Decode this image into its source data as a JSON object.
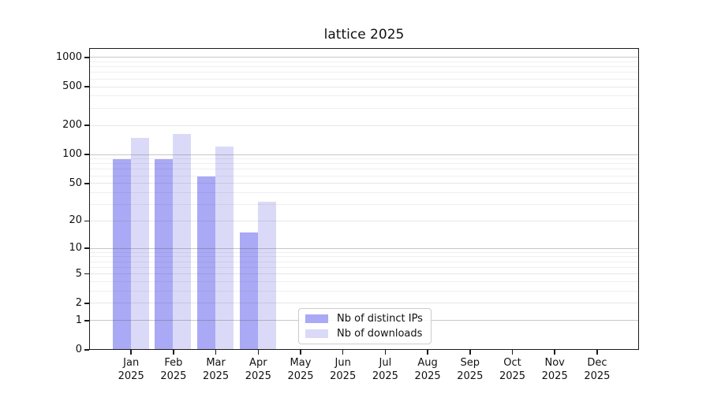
{
  "chart_data": {
    "type": "bar",
    "title": "lattice 2025",
    "months": [
      "Jan",
      "Feb",
      "Mar",
      "Apr",
      "May",
      "Jun",
      "Jul",
      "Aug",
      "Sep",
      "Oct",
      "Nov",
      "Dec"
    ],
    "year_label": "2025",
    "y_axis": {
      "scale": "log1p",
      "ticks": [
        0,
        1,
        2,
        5,
        10,
        20,
        50,
        100,
        200,
        500,
        1000
      ],
      "range_top": 1250,
      "grid": "on"
    },
    "series": [
      {
        "name": "Nb of distinct IPs",
        "color": "#a9a9f5",
        "values": [
          89,
          88,
          59,
          15,
          null,
          null,
          null,
          null,
          null,
          null,
          null,
          null
        ]
      },
      {
        "name": "Nb of downloads",
        "color": "#dadaf8",
        "values": [
          147,
          163,
          119,
          32,
          null,
          null,
          null,
          null,
          null,
          null,
          null,
          null
        ]
      }
    ],
    "legend_position": "bottom-center"
  },
  "colors": {
    "grid_major": "rgba(80,80,80,0.32)",
    "grid_mid": "rgba(80,80,80,0.14)",
    "grid_minor": "rgba(80,80,80,0.09)",
    "spine": "#1a1a1a",
    "background": "#ffffff"
  }
}
